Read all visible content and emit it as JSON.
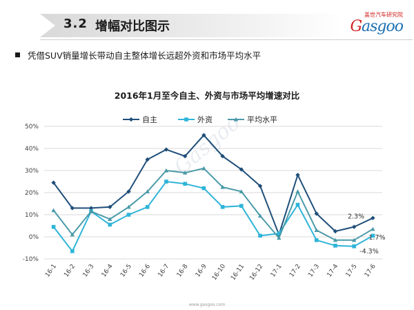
{
  "header": {
    "section_number": "3.2",
    "section_title": "增幅对比图示",
    "logo_text": "Gasgoo",
    "logo_caption": "盖世汽车研究院"
  },
  "subtitle": "凭借SUV销量增长带动自主整体增长远超外资和市场平均水平",
  "footer": {
    "url": "www.gasgoo.com"
  },
  "colors": {
    "series_domestic": "#1f4e79",
    "series_foreign": "#2eb4d8",
    "series_market_avg": "#4a9aa8"
  },
  "chart_data": {
    "type": "line",
    "title": "2016年1月至今自主、外资与市场平均增速对比",
    "xlabel": "",
    "ylabel": "",
    "categories": [
      "16-1",
      "16-2",
      "16-3",
      "16-4",
      "16-5",
      "16-6",
      "16-7",
      "16-8",
      "16-9",
      "16-10",
      "16-11",
      "16-12",
      "17-1",
      "17-2",
      "17-3",
      "17-4",
      "17-5",
      "17-6"
    ],
    "yticks": [
      "50%",
      "40%",
      "30%",
      "20%",
      "10%",
      "0%",
      "-10%"
    ],
    "ylim": [
      -10,
      50
    ],
    "grid": true,
    "legend_position": "top",
    "series": [
      {
        "name": "自主",
        "marker": "diamond",
        "values": [
          24.5,
          13,
          13,
          13.5,
          20.5,
          35,
          39.5,
          36.5,
          46,
          36.5,
          30.5,
          23,
          1,
          28,
          10.5,
          2.5,
          4.5,
          8.5
        ]
      },
      {
        "name": "外资",
        "marker": "square",
        "values": [
          4.5,
          -6.5,
          11.5,
          5.5,
          10,
          13.5,
          25,
          24,
          22,
          13.5,
          14,
          0.5,
          1.5,
          14.5,
          -1.5,
          -4,
          -4.3,
          0.5
        ]
      },
      {
        "name": "平均水平",
        "marker": "triangle",
        "values": [
          12,
          1,
          11.5,
          8,
          13.5,
          20.5,
          30,
          29,
          31,
          22.5,
          20.5,
          9.5,
          -0.5,
          20.5,
          3,
          -1.5,
          -1.5,
          3.5
        ]
      }
    ],
    "annotations": [
      "2.3%",
      "1.7%",
      "-4.3%"
    ]
  },
  "watermark": "Gasgoo"
}
